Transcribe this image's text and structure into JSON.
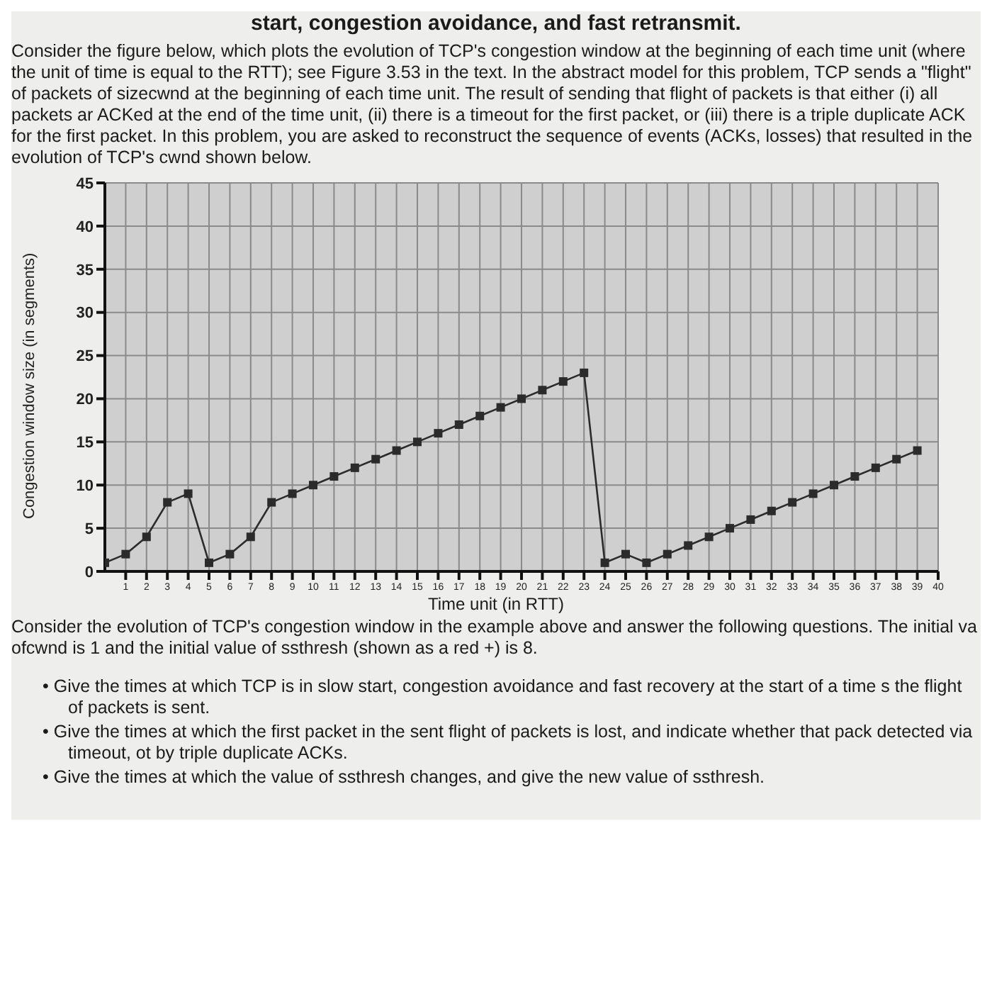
{
  "chart_data": {
    "type": "line",
    "title": "start, congestion avoidance, and fast retransmit.",
    "subtitle": "Consider the figure below, which plots the evolution of TCP's congestion window at the beginning of each time unit (where the unit of time is equal to the RTT); see Figure 3.53 in the text. In the abstract model for this problem, TCP sends a \"flight\" of packets of sizecwnd at the beginning of each time unit. The result of sending that flight of packets is that either (i) all packets ar ACKed at the end of the time unit, (ii) there is a timeout for the first packet, or (iii) there is a triple duplicate ACK for the first packet. In this problem, you are asked to reconstruct the sequence of events (ACKs, losses) that resulted in the evolution of TCP's cwnd shown below.",
    "xlabel": "Time unit (in RTT)",
    "ylabel": "Congestion window size (in segments)",
    "annotations": [
      "Consider the evolution of TCP's congestion window in the example above and answer the following questions. The initial va ofcwnd is 1 and the initial value of ssthresh (shown as a red +) is 8.",
      "• Give the times at which TCP is in slow start, congestion avoidance and fast recovery at the start of a time s the flight of packets is sent.",
      "• Give the times at which the first packet in the sent flight of packets is lost, and indicate whether that pack detected via timeout, ot by triple duplicate ACKs.",
      "• Give the times at which the value of ssthresh changes, and give the new value of ssthresh."
    ],
    "x": [
      0,
      1,
      2,
      3,
      4,
      5,
      6,
      7,
      8,
      9,
      10,
      11,
      12,
      13,
      14,
      15,
      16,
      17,
      18,
      19,
      20,
      21,
      22,
      23,
      24,
      25,
      26,
      27,
      28,
      29,
      30,
      31,
      32,
      33,
      34,
      35,
      36,
      37,
      38,
      39
    ],
    "series": [
      {
        "color": "#2b2b2b",
        "values": [
          1,
          2,
          4,
          8,
          9,
          1,
          2,
          4,
          8,
          9,
          10,
          11,
          12,
          13,
          14,
          15,
          16,
          17,
          18,
          19,
          20,
          21,
          22,
          23,
          1,
          2,
          1,
          2,
          3,
          4,
          5,
          6,
          7,
          8,
          9,
          10,
          11,
          12,
          13,
          14
        ]
      }
    ],
    "xlim": [
      0,
      40
    ],
    "xticks": [
      1,
      2,
      3,
      4,
      5,
      6,
      7,
      8,
      9,
      10,
      11,
      12,
      13,
      14,
      15,
      16,
      17,
      18,
      19,
      20,
      21,
      22,
      23,
      24,
      25,
      26,
      27,
      28,
      29,
      30,
      31,
      32,
      33,
      34,
      35,
      36,
      37,
      38,
      39,
      40
    ],
    "ylim": [
      0,
      45
    ],
    "yticks": [
      0,
      5,
      10,
      15,
      20,
      25,
      30,
      35,
      40,
      45
    ],
    "grid": true,
    "marker": "square",
    "line_style": "solid",
    "legend": false
  }
}
